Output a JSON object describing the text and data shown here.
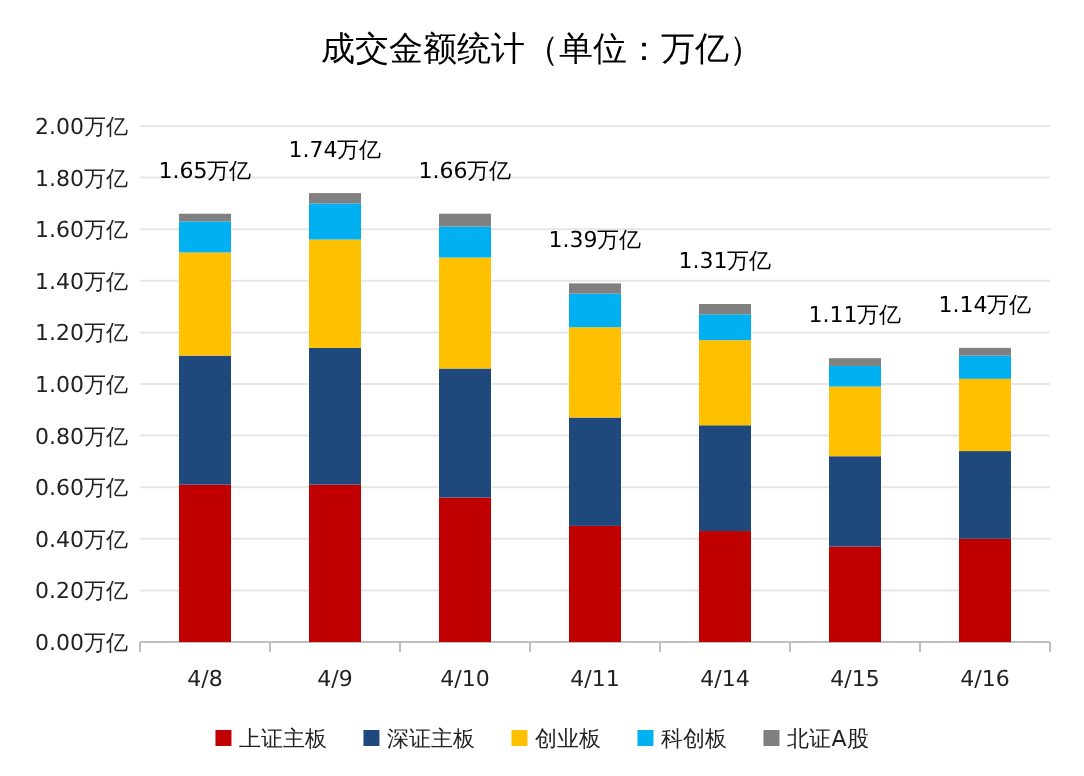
{
  "chart_data": {
    "type": "bar",
    "title": "成交金额统计（单位：万亿）",
    "stacked": true,
    "categories": [
      "4/8",
      "4/9",
      "4/10",
      "4/11",
      "4/14",
      "4/15",
      "4/16"
    ],
    "series": [
      {
        "name": "上证主板",
        "color": "#c00000",
        "values": [
          0.61,
          0.61,
          0.56,
          0.45,
          0.43,
          0.37,
          0.4
        ]
      },
      {
        "name": "深证主板",
        "color": "#1f497d",
        "values": [
          0.5,
          0.53,
          0.5,
          0.42,
          0.41,
          0.35,
          0.34
        ]
      },
      {
        "name": "创业板",
        "color": "#ffc000",
        "values": [
          0.4,
          0.42,
          0.43,
          0.35,
          0.33,
          0.27,
          0.28
        ]
      },
      {
        "name": "科创板",
        "color": "#00b0f0",
        "values": [
          0.12,
          0.14,
          0.12,
          0.13,
          0.1,
          0.08,
          0.09
        ]
      },
      {
        "name": "北证A股",
        "color": "#808080",
        "values": [
          0.03,
          0.04,
          0.05,
          0.04,
          0.04,
          0.03,
          0.03
        ]
      }
    ],
    "totals": [
      "1.65万亿",
      "1.74万亿",
      "1.66万亿",
      "1.39万亿",
      "1.31万亿",
      "1.11万亿",
      "1.14万亿"
    ],
    "ylim": [
      0,
      2
    ],
    "yticks": [
      {
        "value": 0,
        "label": "0.00万亿"
      },
      {
        "value": 0.2,
        "label": "0.20万亿"
      },
      {
        "value": 0.4,
        "label": "0.40万亿"
      },
      {
        "value": 0.6,
        "label": "0.60万亿"
      },
      {
        "value": 0.8,
        "label": "0.80万亿"
      },
      {
        "value": 1.0,
        "label": "1.00万亿"
      },
      {
        "value": 1.2,
        "label": "1.20万亿"
      },
      {
        "value": 1.4,
        "label": "1.40万亿"
      },
      {
        "value": 1.6,
        "label": "1.60万亿"
      },
      {
        "value": 1.8,
        "label": "1.80万亿"
      },
      {
        "value": 2.0,
        "label": "2.00万亿"
      }
    ],
    "grid": "y",
    "legend": "bottom"
  }
}
